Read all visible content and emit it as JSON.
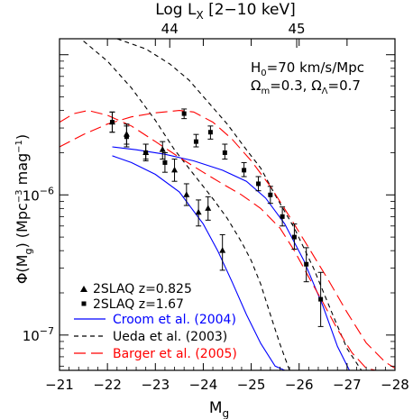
{
  "chart_data": {
    "type": "scatter",
    "title": "",
    "top_axis_label": "Log L",
    "top_axis_label_sub": "X",
    "top_axis_label_rest": " [2−10 keV]",
    "top_ticks": [
      "44",
      "45"
    ],
    "top_tick_mg": [
      -23.3,
      -25.95
    ],
    "xlabel": "M",
    "xlabel_sub": "g",
    "ylabel": "Φ(M",
    "ylabel_sub": "g",
    "ylabel_rest": ") (Mpc",
    "ylabel_sup": "−3",
    "ylabel_rest2": " mag",
    "ylabel_sup2": "−1",
    "ylabel_end": ")",
    "xlim": [
      -21,
      -28
    ],
    "ylim": [
      5.6e-08,
      1.3e-05
    ],
    "yscale": "log",
    "x_ticks": [
      -21,
      -22,
      -23,
      -24,
      -25,
      -26,
      -27,
      -28
    ],
    "x_tick_labels": [
      "−21",
      "−22",
      "−23",
      "−24",
      "−25",
      "−26",
      "−27",
      "−28"
    ],
    "y_major_ticks": [
      1e-07,
      1e-06
    ],
    "y_tick_labels": [
      {
        "base": "10",
        "exp": "−7"
      },
      {
        "base": "10",
        "exp": "−6"
      }
    ],
    "cosmology": {
      "line1_a": "H",
      "line1_sub": "0",
      "line1_b": "=70 km/s/Mpc",
      "line2_a": "Ω",
      "line2_sub": "m",
      "line2_b": "=0.3, ",
      "line2_c": "Ω",
      "line2_sub2": "Λ",
      "line2_d": "=0.7"
    },
    "colors": {
      "black": "#000000",
      "blue": "#0000ff",
      "red": "#ff0000"
    },
    "legend_position": "bottom-left",
    "legend": [
      {
        "label": "2SLAQ z=0.825",
        "marker": "triangle",
        "color": "#000000"
      },
      {
        "label": "2SLAQ z=1.67",
        "marker": "square",
        "color": "#000000"
      },
      {
        "label": "Croom et al. (2004)",
        "line": "solid",
        "color": "#0000ff"
      },
      {
        "label": "Ueda et al. (2003)",
        "line": "dashed",
        "color": "#000000"
      },
      {
        "label": "Barger et al. (2005)",
        "line": "longdash",
        "color": "#ff0000"
      }
    ],
    "points": [
      {
        "marker": "triangle",
        "x": [
          -22.1,
          -22.4,
          -22.8,
          -23.15,
          -23.4,
          -23.65,
          -23.9,
          -24.1,
          -24.4
        ],
        "y": [
          3.3e-06,
          2.7e-06,
          2e-06,
          2.1e-06,
          1.5e-06,
          1e-06,
          7.5e-07,
          8e-07,
          4e-07
        ],
        "err_lo": [
          2.8e-06,
          2.3e-06,
          1.8e-06,
          1.8e-06,
          1.25e-06,
          8.4e-07,
          6e-07,
          6.6e-07,
          2.9e-07
        ],
        "err_hi": [
          3.9e-06,
          3.2e-06,
          2.3e-06,
          2.4e-06,
          1.8e-06,
          1.2e-06,
          9.2e-07,
          9.7e-07,
          5.2e-07
        ]
      },
      {
        "marker": "square",
        "x": [
          -22.1,
          -22.4,
          -22.8,
          -23.2,
          -23.6,
          -23.85,
          -24.15,
          -24.45,
          -24.85,
          -25.15,
          -25.4,
          -25.65,
          -25.9,
          -26.15,
          -26.45
        ],
        "y": [
          3.3e-06,
          2.6e-06,
          2e-06,
          1.7e-06,
          3.8e-06,
          2.4e-06,
          2.8e-06,
          2e-06,
          1.5e-06,
          1.2e-06,
          1e-06,
          7e-07,
          5e-07,
          3.2e-07,
          1.8e-07
        ],
        "err_lo": [
          2.8e-06,
          2.2e-06,
          1.75e-06,
          1.45e-06,
          3.5e-06,
          2.2e-06,
          2.5e-06,
          1.8e-06,
          1.35e-06,
          1.07e-06,
          8.7e-07,
          6e-07,
          4.1e-07,
          2.4e-07,
          1.15e-07
        ],
        "err_hi": [
          3.9e-06,
          3.1e-06,
          2.3e-06,
          2e-06,
          4.1e-06,
          2.7e-06,
          3.1e-06,
          2.3e-06,
          1.7e-06,
          1.35e-06,
          1.15e-06,
          8.2e-07,
          6.2e-07,
          4.2e-07,
          2.8e-07
        ]
      }
    ],
    "curves": [
      {
        "style": "solid",
        "color": "#0000ff",
        "x": [
          -22.1,
          -22.5,
          -23.0,
          -23.5,
          -24.0,
          -24.3,
          -24.6,
          -24.9,
          -25.2,
          -25.5,
          -25.7
        ],
        "y": [
          1.9e-06,
          1.7e-06,
          1.4e-06,
          1.05e-06,
          6.2e-07,
          4e-07,
          2.4e-07,
          1.4e-07,
          8.7e-08,
          6e-08,
          5.6e-08
        ]
      },
      {
        "style": "solid",
        "color": "#0000ff",
        "x": [
          -22.1,
          -22.6,
          -23.2,
          -23.8,
          -24.4,
          -24.9,
          -25.3,
          -25.7,
          -26.1,
          -26.5,
          -26.8,
          -27.05
        ],
        "y": [
          2.2e-06,
          2.1e-06,
          1.95e-06,
          1.75e-06,
          1.5e-06,
          1.25e-06,
          9.5e-07,
          6.2e-07,
          3.4e-07,
          1.6e-07,
          8.3e-08,
          5.6e-08
        ]
      },
      {
        "style": "dashed",
        "color": "#000000",
        "x": [
          -21.5,
          -22.0,
          -22.5,
          -23.0,
          -23.4,
          -23.8,
          -24.2,
          -24.5,
          -24.8,
          -25.0,
          -25.2,
          -25.4,
          -25.6,
          -25.8
        ],
        "y": [
          1.25e-05,
          9e-06,
          5.8e-06,
          3.4e-06,
          2.1e-06,
          1.4e-06,
          9.4e-07,
          6.8e-07,
          4.6e-07,
          3.4e-07,
          2.3e-07,
          1.4e-07,
          8.6e-08,
          5.6e-08
        ]
      },
      {
        "style": "dashed",
        "color": "#000000",
        "x": [
          -22.2,
          -22.8,
          -23.3,
          -23.7,
          -24.1,
          -24.5,
          -24.9,
          -25.2,
          -25.5,
          -25.9,
          -26.3,
          -26.7,
          -27.0,
          -27.3
        ],
        "y": [
          1.3e-05,
          1.1e-05,
          8.6e-06,
          6.6e-06,
          4.6e-06,
          3.2e-06,
          2.1e-06,
          1.55e-06,
          1e-06,
          5.8e-07,
          3e-07,
          1.4e-07,
          8e-08,
          5.6e-08
        ]
      },
      {
        "style": "longdash",
        "color": "#ff0000",
        "x": [
          -21.0,
          -21.3,
          -21.6,
          -22.0,
          -22.5,
          -23.0,
          -23.5,
          -24.0,
          -24.4,
          -24.8,
          -25.2,
          -25.6,
          -25.9,
          -26.2,
          -26.5,
          -26.8,
          -27.1,
          -27.4,
          -27.6
        ],
        "y": [
          3.3e-06,
          3.8e-06,
          4e-06,
          3.7e-06,
          3.1e-06,
          2.4e-06,
          1.85e-06,
          1.45e-06,
          1.2e-06,
          1e-06,
          8e-07,
          5.8e-07,
          4e-07,
          2.6e-07,
          1.7e-07,
          1.1e-07,
          7.5e-08,
          5.8e-08,
          5.6e-08
        ]
      },
      {
        "style": "longdash",
        "color": "#ff0000",
        "x": [
          -21.0,
          -21.5,
          -22.0,
          -22.5,
          -23.0,
          -23.5,
          -23.8,
          -24.2,
          -24.6,
          -25.0,
          -25.4,
          -25.8,
          -26.2,
          -26.6,
          -27.0,
          -27.4,
          -27.8,
          -28.0
        ],
        "y": [
          2.2e-06,
          2.7e-06,
          3.2e-06,
          3.6e-06,
          3.85e-06,
          4e-06,
          3.9e-06,
          3.3e-06,
          2.5e-06,
          1.75e-06,
          1.15e-06,
          7e-07,
          4.2e-07,
          2.5e-07,
          1.45e-07,
          8.8e-08,
          6.4e-08,
          5.8e-08
        ]
      }
    ]
  }
}
